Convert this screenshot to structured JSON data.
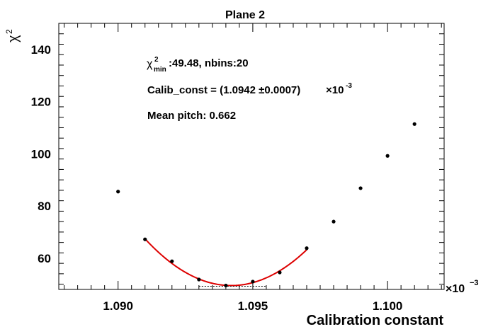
{
  "chart_data": {
    "type": "scatter",
    "title": "Plane 2",
    "xlabel": "Calibration constant",
    "x_multiplier": "×10",
    "x_multiplier_exp": "−3",
    "ylabel_symbol": "χ",
    "ylabel_exp": "2",
    "xlim": [
      1.0878,
      1.1021
    ],
    "ylim": [
      48,
      150
    ],
    "x_ticks": [
      1.09,
      1.095,
      1.1
    ],
    "x_tick_labels": [
      "1.090",
      "1.095",
      "1.100"
    ],
    "y_ticks": [
      60,
      80,
      100,
      120,
      140
    ],
    "y_tick_labels": [
      "60",
      "80",
      "100",
      "120",
      "140"
    ],
    "grid": false,
    "series": [
      {
        "type": "scatter",
        "x": [
          1.09,
          1.091,
          1.092,
          1.093,
          1.094,
          1.095,
          1.096,
          1.097,
          1.098,
          1.099,
          1.1,
          1.101
        ],
        "y": [
          85.5,
          67.2,
          58.8,
          51.8,
          49.5,
          51.0,
          54.5,
          63.8,
          74.0,
          86.8,
          99.2,
          111.4
        ],
        "color": "#000000"
      },
      {
        "type": "fit",
        "x_range": [
          1.091,
          1.097
        ],
        "min_x": 1.0942,
        "min_y": 49.48,
        "curvature": 1.75,
        "color": "#dd0000"
      }
    ],
    "annotations": {
      "chi_symbol": "χ",
      "chi_sup": "2",
      "chi_sub": "min",
      "chi_value": ":49.48, nbins:20",
      "calib_prefix": "Calib_const = (1.0942  ±0.0007)",
      "calib_times": "×10",
      "calib_exp": "-3",
      "mean_pitch": "Mean pitch: 0.662"
    }
  }
}
